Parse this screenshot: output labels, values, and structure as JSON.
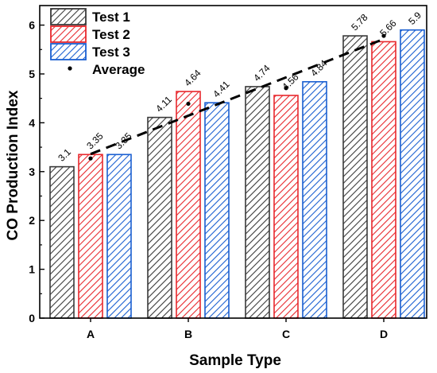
{
  "chart_data": {
    "type": "bar",
    "categories": [
      "A",
      "B",
      "C",
      "D"
    ],
    "series": [
      {
        "name": "Test 1",
        "values": [
          3.1,
          4.11,
          4.74,
          5.78
        ],
        "color": "#3a3a3a",
        "labels": [
          "3.1",
          "4.11",
          "4.74",
          "5.78"
        ]
      },
      {
        "name": "Test 2",
        "values": [
          3.35,
          4.64,
          4.56,
          5.66
        ],
        "color": "#e8282d",
        "labels": [
          "3.35",
          "4.64",
          "4.56",
          "5.66"
        ]
      },
      {
        "name": "Test 3",
        "values": [
          3.35,
          4.41,
          4.84,
          5.9
        ],
        "color": "#1a5fd1",
        "labels": [
          "3.35",
          "4.41",
          "4.84",
          "5.9"
        ]
      }
    ],
    "average": {
      "name": "Average",
      "values": [
        3.27,
        4.39,
        4.71,
        5.78
      ],
      "trend": "linear, dashed"
    },
    "xlabel": "Sample Type",
    "ylabel": "CO Production Index",
    "ylim": [
      0,
      6.4
    ],
    "yticks": [
      0,
      1,
      2,
      3,
      4,
      5,
      6
    ],
    "legend_position": "top-left",
    "bar_fill": "diagonal hatch"
  }
}
